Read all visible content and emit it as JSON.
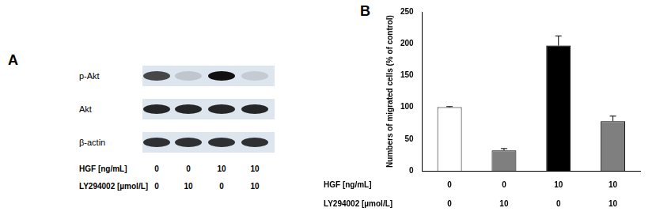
{
  "blot": {
    "label": "A",
    "rows": [
      {
        "label": "p-Akt",
        "intensity": [
          0.75,
          0.15,
          1.0,
          0.12
        ]
      },
      {
        "label": "Akt",
        "intensity": [
          0.9,
          0.9,
          0.9,
          0.9
        ]
      },
      {
        "label": "β-actin",
        "intensity": [
          0.85,
          0.85,
          0.85,
          0.85
        ]
      }
    ],
    "conditions": [
      {
        "label": "HGF [ng/mL]",
        "values": [
          0,
          0,
          10,
          10
        ]
      },
      {
        "label": "LY294002 [µmol/L]",
        "values": [
          0,
          10,
          0,
          10
        ]
      }
    ]
  },
  "chart_data": {
    "label": "B",
    "type": "bar",
    "y_label": "Numbers of migrated cells (% of control)",
    "category_rows": [
      "HGF [ng/mL]",
      "LY294002 [µmol/L]"
    ],
    "categories": [
      [
        0,
        0
      ],
      [
        0,
        10
      ],
      [
        10,
        0
      ],
      [
        10,
        10
      ]
    ],
    "values": [
      100,
      32,
      197,
      78
    ],
    "errors": [
      1,
      3,
      15,
      8
    ],
    "colors": [
      "#ffffff",
      "#7f7f7f",
      "#000000",
      "#7f7f7f"
    ],
    "ylim": [
      0,
      250
    ],
    "yticks": [
      0,
      50,
      100,
      150,
      200,
      250
    ],
    "grid": false
  }
}
